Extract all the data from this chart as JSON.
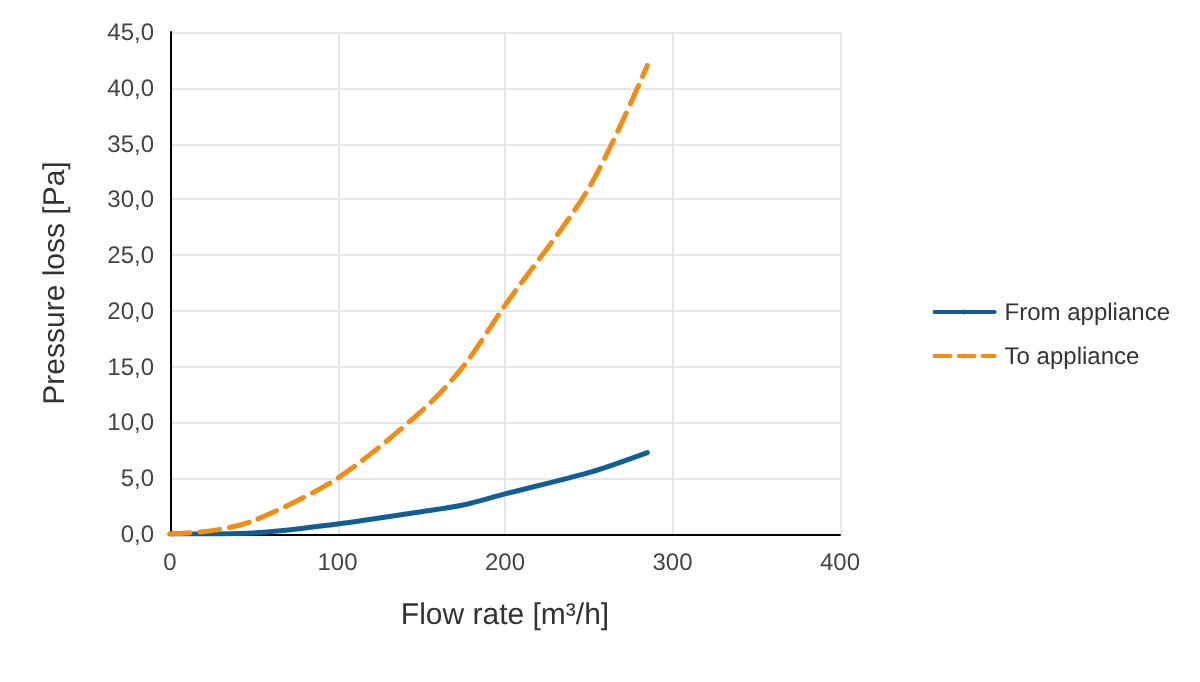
{
  "chart_data": {
    "type": "line",
    "xlabel": "Flow rate [m³/h]",
    "ylabel": "Pressure loss [Pa]",
    "xlim": [
      0,
      400
    ],
    "xticks": [
      0,
      100,
      200,
      300,
      400
    ],
    "ylim": [
      0,
      45
    ],
    "yticks": [
      {
        "value": 0,
        "label": "0,0"
      },
      {
        "value": 5,
        "label": "5,0"
      },
      {
        "value": 10,
        "label": "10,0"
      },
      {
        "value": 15,
        "label": "15,0"
      },
      {
        "value": 20,
        "label": "20,0"
      },
      {
        "value": 25,
        "label": "25,0"
      },
      {
        "value": 30,
        "label": "30,0"
      },
      {
        "value": 35,
        "label": "35,0"
      },
      {
        "value": 40,
        "label": "40,0"
      },
      {
        "value": 45,
        "label": "45,0"
      }
    ],
    "grid": true,
    "legend": "right",
    "marker": "none",
    "series": [
      {
        "name": "From appliance",
        "color": "#0f5f96",
        "line_style": "solid",
        "x": [
          0,
          50,
          100,
          150,
          175,
          200,
          250,
          285
        ],
        "values": [
          0,
          0.1,
          0.9,
          2,
          2.6,
          3.6,
          5.5,
          7.3
        ]
      },
      {
        "name": "To appliance",
        "color": "#f28c12",
        "line_style": "dashed",
        "x": [
          0,
          25,
          50,
          100,
          150,
          175,
          200,
          250,
          285
        ],
        "values": [
          0,
          0.3,
          1.2,
          5,
          11,
          15,
          20.5,
          31,
          42
        ]
      }
    ]
  }
}
